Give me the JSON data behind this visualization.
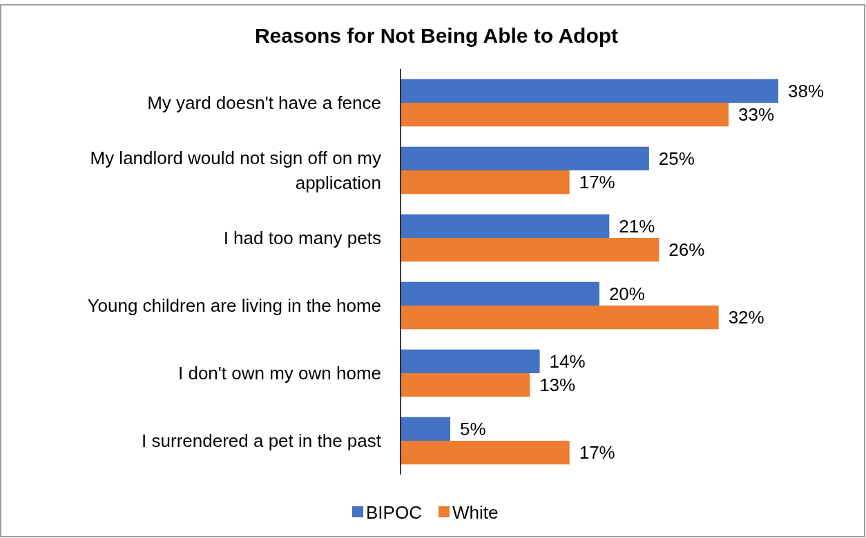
{
  "chart_data": {
    "type": "bar",
    "orientation": "horizontal",
    "title": "Reasons for Not Being Able to Adopt",
    "categories": [
      "My yard doesn't have a fence",
      "My landlord would not sign off on my application",
      "I had too many pets",
      "Young children are living in the home",
      "I don't own my own home",
      "I surrendered a pet in the past"
    ],
    "series": [
      {
        "name": "BIPOC",
        "color": "#4472c4",
        "values": [
          38,
          25,
          21,
          20,
          14,
          5
        ],
        "value_labels": [
          "38%",
          "25%",
          "21%",
          "20%",
          "14%",
          "5%"
        ]
      },
      {
        "name": "White",
        "color": "#ed7d31",
        "values": [
          33,
          17,
          26,
          32,
          13,
          17
        ],
        "value_labels": [
          "33%",
          "17%",
          "26%",
          "32%",
          "13%",
          "17%"
        ]
      }
    ],
    "legend": "bottom"
  }
}
